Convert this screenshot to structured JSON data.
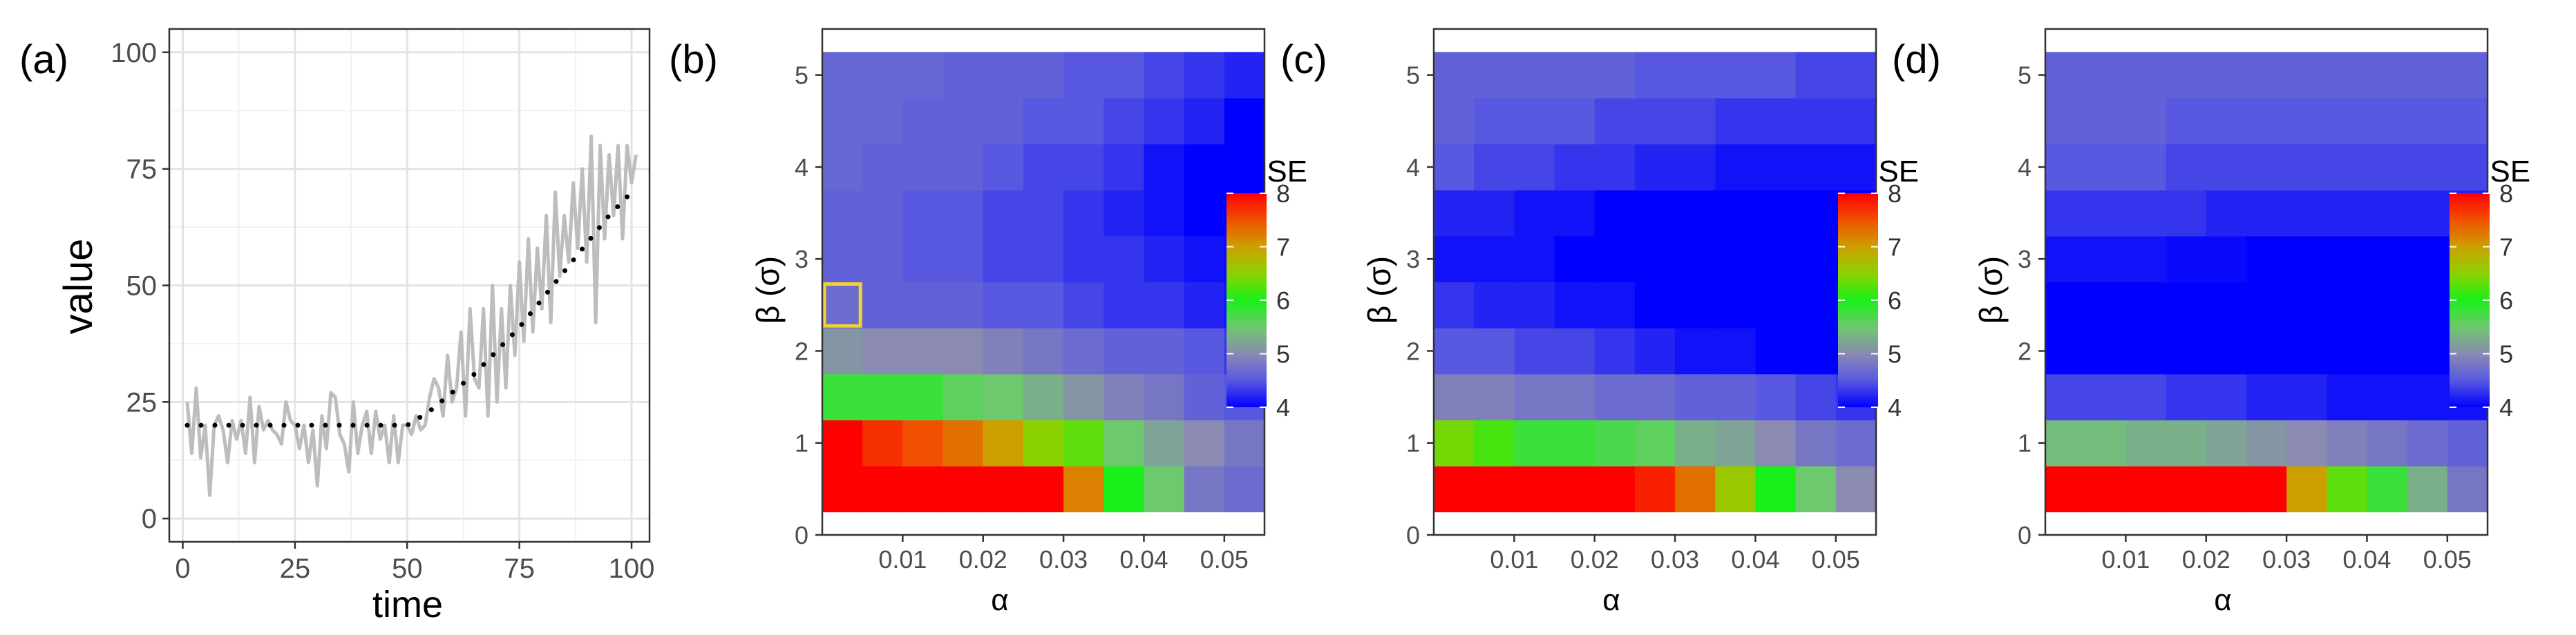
{
  "chart_data": [
    {
      "type": "line",
      "panel_label": "(a)",
      "xlabel": "time",
      "ylabel": "value",
      "xlim": [
        -3,
        104
      ],
      "ylim": [
        -5,
        105
      ],
      "x_ticks": [
        0,
        25,
        50,
        75,
        100
      ],
      "x_tick_labels": [
        "0",
        "25",
        "50",
        "75",
        "100"
      ],
      "y_ticks": [
        0,
        25,
        50,
        75,
        100
      ],
      "y_tick_labels": [
        "0",
        "25",
        "50",
        "75",
        "100"
      ],
      "grid": true,
      "series": [
        {
          "name": "observed",
          "color": "#bdbdbd",
          "style": "solid",
          "x": [
            1,
            2,
            3,
            4,
            5,
            6,
            7,
            8,
            9,
            10,
            11,
            12,
            13,
            14,
            15,
            16,
            17,
            18,
            19,
            20,
            21,
            22,
            23,
            24,
            25,
            26,
            27,
            28,
            29,
            30,
            31,
            32,
            33,
            34,
            35,
            36,
            37,
            38,
            39,
            40,
            41,
            42,
            43,
            44,
            45,
            46,
            47,
            48,
            49,
            50,
            51,
            52,
            53,
            54,
            55,
            56,
            57,
            58,
            59,
            60,
            61,
            62,
            63,
            64,
            65,
            66,
            67,
            68,
            69,
            70,
            71,
            72,
            73,
            74,
            75,
            76,
            77,
            78,
            79,
            80,
            81,
            82,
            83,
            84,
            85,
            86,
            87,
            88,
            89,
            90,
            91,
            92,
            93,
            94,
            95,
            96,
            97,
            98,
            99,
            100,
            101
          ],
          "values": [
            25,
            14,
            28,
            13,
            20,
            5,
            20,
            22,
            19,
            12,
            21,
            17,
            21,
            14,
            26,
            12,
            24,
            19,
            21,
            19,
            18,
            16,
            25,
            21,
            20,
            15,
            20,
            12,
            19,
            7,
            22,
            15,
            27,
            26,
            18,
            16,
            10,
            25,
            14,
            20,
            23,
            14,
            23,
            17,
            20,
            12,
            22,
            12,
            20,
            20,
            18,
            22,
            19,
            20,
            26,
            30,
            28,
            22,
            35,
            25,
            28,
            40,
            22,
            45,
            30,
            28,
            45,
            22,
            50,
            25,
            45,
            28,
            50,
            35,
            55,
            38,
            60,
            40,
            58,
            45,
            65,
            42,
            70,
            52,
            65,
            55,
            72,
            58,
            75,
            55,
            82,
            42,
            80,
            60,
            78,
            65,
            80,
            60,
            80,
            72,
            78
          ]
        },
        {
          "name": "trend",
          "color": "#000000",
          "style": "dotted",
          "x": [
            1,
            10,
            20,
            30,
            40,
            50,
            55,
            60,
            65,
            70,
            75,
            80,
            85,
            90,
            95,
            101
          ],
          "values": [
            20,
            20,
            20,
            20,
            20,
            20,
            23,
            27,
            31,
            36,
            41,
            47,
            53,
            59,
            65,
            71
          ]
        }
      ]
    },
    {
      "type": "heatmap",
      "panel_label": "(b)",
      "xlabel": "α",
      "ylabel": "β (σ)",
      "x_values": [
        0.0025,
        0.0075,
        0.0125,
        0.0175,
        0.0225,
        0.0275,
        0.0325,
        0.0375,
        0.0425,
        0.0475,
        0.0525
      ],
      "x_ticks": [
        0.01,
        0.02,
        0.03,
        0.04,
        0.05
      ],
      "x_tick_labels": [
        "0.01",
        "0.02",
        "0.03",
        "0.04",
        "0.05"
      ],
      "xlim": [
        0,
        0.055
      ],
      "y_values": [
        0.5,
        1,
        1.5,
        2,
        2.5,
        3,
        3.5,
        4,
        4.5,
        5
      ],
      "y_ticks": [
        0,
        1,
        2,
        3,
        4,
        5
      ],
      "y_tick_labels": [
        "0",
        "1",
        "2",
        "3",
        "4",
        "5"
      ],
      "ylim": [
        0,
        5.5
      ],
      "z": [
        [
          8,
          8,
          8,
          8,
          8,
          8,
          7.2,
          6,
          5.5,
          4.8,
          4.7
        ],
        [
          8,
          7.7,
          7.5,
          7.3,
          7,
          6.5,
          6.3,
          5.5,
          5.2,
          5,
          4.8
        ],
        [
          5.8,
          5.8,
          5.8,
          5.6,
          5.5,
          5.3,
          5.1,
          4.9,
          4.8,
          4.6,
          4.5
        ],
        [
          5.1,
          5,
          5,
          5,
          4.9,
          4.8,
          4.7,
          4.6,
          4.6,
          4.5,
          4.3
        ],
        [
          4.7,
          4.6,
          4.6,
          4.6,
          4.5,
          4.5,
          4.4,
          4.3,
          4.3,
          4.2,
          4.1
        ],
        [
          4.6,
          4.6,
          4.5,
          4.5,
          4.4,
          4.4,
          4.3,
          4.3,
          4.2,
          4.1,
          4.05
        ],
        [
          4.6,
          4.6,
          4.5,
          4.5,
          4.4,
          4.4,
          4.3,
          4.2,
          4.1,
          4,
          4
        ],
        [
          4.65,
          4.6,
          4.6,
          4.6,
          4.5,
          4.4,
          4.4,
          4.3,
          4.1,
          4,
          4
        ],
        [
          4.65,
          4.65,
          4.6,
          4.6,
          4.6,
          4.5,
          4.5,
          4.4,
          4.3,
          4.2,
          4
        ],
        [
          4.65,
          4.65,
          4.65,
          4.6,
          4.6,
          4.6,
          4.5,
          4.5,
          4.4,
          4.3,
          4.2
        ]
      ],
      "highlight": {
        "x": 0.0025,
        "y": 2.5,
        "color": "#f2d22e"
      },
      "colorbar": {
        "title": "RMSE",
        "ticks": [
          4,
          5,
          6,
          7,
          8
        ],
        "tick_labels": [
          "4",
          "5",
          "6",
          "7",
          "8"
        ],
        "range": [
          4,
          8
        ]
      }
    },
    {
      "type": "heatmap",
      "panel_label": "(c)",
      "xlabel": "α",
      "ylabel": "β (σ)",
      "x_values": [
        0.0025,
        0.0075,
        0.0125,
        0.0175,
        0.0225,
        0.0275,
        0.0325,
        0.0375,
        0.0425,
        0.0475,
        0.0525
      ],
      "x_ticks": [
        0.01,
        0.02,
        0.03,
        0.04,
        0.05
      ],
      "x_tick_labels": [
        "0.01",
        "0.02",
        "0.03",
        "0.04",
        "0.05"
      ],
      "xlim": [
        0,
        0.055
      ],
      "y_values": [
        0.5,
        1,
        1.5,
        2,
        2.5,
        3,
        3.5,
        4,
        4.5,
        5
      ],
      "y_ticks": [
        0,
        1,
        2,
        3,
        4,
        5
      ],
      "y_tick_labels": [
        "0",
        "1",
        "2",
        "3",
        "4",
        "5"
      ],
      "ylim": [
        0,
        5.5
      ],
      "z": [
        [
          8,
          8,
          8,
          8,
          8,
          7.8,
          7.3,
          6.6,
          6,
          5.5,
          5
        ],
        [
          6.4,
          6.2,
          5.8,
          5.8,
          5.7,
          5.6,
          5.3,
          5.2,
          5,
          4.8,
          4.7
        ],
        [
          4.9,
          4.9,
          4.8,
          4.8,
          4.7,
          4.7,
          4.6,
          4.6,
          4.5,
          4.4,
          4.3
        ],
        [
          4.5,
          4.5,
          4.4,
          4.4,
          4.3,
          4.2,
          4.1,
          4.1,
          4,
          4,
          4
        ],
        [
          4.3,
          4.2,
          4.2,
          4.1,
          4.1,
          4,
          4,
          4,
          4,
          4,
          4
        ],
        [
          4.1,
          4.1,
          4.1,
          4,
          4,
          4,
          4,
          4,
          4,
          4,
          4
        ],
        [
          4.2,
          4.2,
          4.1,
          4.1,
          4,
          4,
          4,
          4,
          4,
          4,
          4
        ],
        [
          4.5,
          4.4,
          4.4,
          4.3,
          4.3,
          4.2,
          4.2,
          4.1,
          4.1,
          4.1,
          4.1
        ],
        [
          4.6,
          4.5,
          4.5,
          4.5,
          4.4,
          4.4,
          4.4,
          4.3,
          4.3,
          4.3,
          4.3
        ],
        [
          4.6,
          4.6,
          4.6,
          4.6,
          4.6,
          4.5,
          4.5,
          4.5,
          4.5,
          4.4,
          4.4
        ]
      ],
      "colorbar": {
        "title": "RMSE",
        "ticks": [
          4,
          5,
          6,
          7,
          8
        ],
        "tick_labels": [
          "4",
          "5",
          "6",
          "7",
          "8"
        ],
        "range": [
          4,
          8
        ]
      }
    },
    {
      "type": "heatmap",
      "panel_label": "(d)",
      "xlabel": "α",
      "ylabel": "β (σ)",
      "x_values": [
        0.0025,
        0.0075,
        0.0125,
        0.0175,
        0.0225,
        0.0275,
        0.0325,
        0.0375,
        0.0425,
        0.0475,
        0.0525
      ],
      "x_ticks": [
        0.01,
        0.02,
        0.03,
        0.04,
        0.05
      ],
      "x_tick_labels": [
        "0.01",
        "0.02",
        "0.03",
        "0.04",
        "0.05"
      ],
      "xlim": [
        0,
        0.055
      ],
      "y_values": [
        0.5,
        1,
        1.5,
        2,
        2.5,
        3,
        3.5,
        4,
        4.5,
        5
      ],
      "y_ticks": [
        0,
        1,
        2,
        3,
        4,
        5
      ],
      "y_tick_labels": [
        "0",
        "1",
        "2",
        "3",
        "4",
        "5"
      ],
      "ylim": [
        0,
        5.5
      ],
      "z": [
        [
          8,
          8,
          8,
          8,
          8,
          8,
          7,
          6.3,
          5.8,
          5.3,
          4.8
        ],
        [
          5.4,
          5.4,
          5.3,
          5.3,
          5.2,
          5.1,
          5,
          4.9,
          4.8,
          4.7,
          4.6
        ],
        [
          4.4,
          4.4,
          4.4,
          4.3,
          4.3,
          4.2,
          4.2,
          4.1,
          4.1,
          4.1,
          4.1
        ],
        [
          4,
          4,
          4,
          4,
          4,
          4,
          4,
          4,
          4,
          4,
          4
        ],
        [
          4,
          4,
          4,
          4,
          4,
          4,
          4,
          4,
          4,
          4,
          4
        ],
        [
          4.1,
          4.1,
          4.1,
          4.05,
          4.05,
          4,
          4,
          4,
          4,
          4,
          4
        ],
        [
          4.3,
          4.3,
          4.3,
          4.3,
          4.2,
          4.2,
          4.2,
          4.2,
          4.2,
          4.2,
          4.2
        ],
        [
          4.5,
          4.5,
          4.5,
          4.4,
          4.4,
          4.4,
          4.4,
          4.4,
          4.4,
          4.4,
          4.4
        ],
        [
          4.6,
          4.6,
          4.6,
          4.5,
          4.5,
          4.5,
          4.5,
          4.5,
          4.5,
          4.5,
          4.5
        ],
        [
          4.6,
          4.6,
          4.6,
          4.6,
          4.6,
          4.6,
          4.6,
          4.6,
          4.6,
          4.6,
          4.6
        ]
      ],
      "colorbar": {
        "title": "RMSE",
        "ticks": [
          4,
          5,
          6,
          7,
          8
        ],
        "tick_labels": [
          "4",
          "5",
          "6",
          "7",
          "8"
        ],
        "range": [
          4,
          8
        ]
      }
    }
  ]
}
